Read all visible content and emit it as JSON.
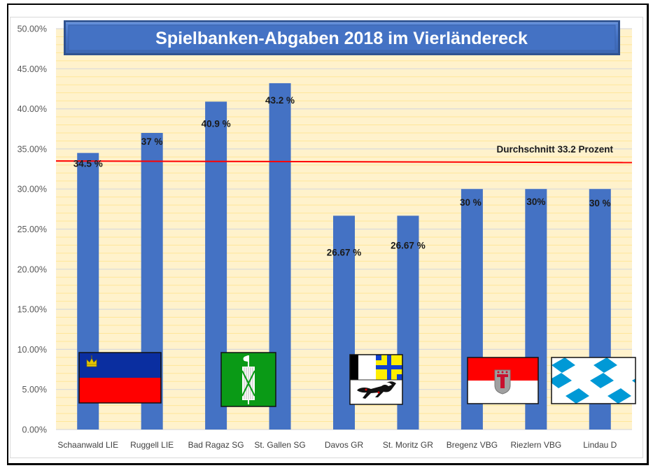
{
  "chart_data": {
    "type": "bar",
    "title": "Spielbanken-Abgaben 2018 im Vierländereck",
    "xlabel": "",
    "ylabel": "",
    "ylim": [
      0,
      50
    ],
    "y_tick_step": 5,
    "y_tick_labels": [
      "0.00%",
      "5.00%",
      "10.00%",
      "15.00%",
      "20.00%",
      "25.00%",
      "30.00%",
      "35.00%",
      "40.00%",
      "45.00%",
      "50.00%"
    ],
    "grid": true,
    "minor_grid_step": 1,
    "categories": [
      "Schaanwald LIE",
      "Ruggell LIE",
      "Bad Ragaz SG",
      "St. Gallen SG",
      "Davos GR",
      "St. Moritz GR",
      "Bregenz VBG",
      "Riezlern VBG",
      "Lindau D"
    ],
    "values": [
      34.5,
      37,
      40.9,
      43.2,
      26.67,
      26.67,
      30,
      30,
      30
    ],
    "data_labels": [
      "34.5 %",
      "37 %",
      "40.9 %",
      "43.2 %",
      "26.67 %",
      "26.67 %",
      "30 %",
      "30%",
      "30 %"
    ],
    "average_line": {
      "label": "Durchschnitt 33.2 Prozent",
      "value": 33.2,
      "start_value": 33.5,
      "end_value": 33.3,
      "color": "#ff0000"
    },
    "flags": [
      {
        "name": "Liechtenstein",
        "icon": "flag-liechtenstein",
        "covers": [
          "Schaanwald LIE",
          "Ruggell LIE"
        ]
      },
      {
        "name": "St. Gallen",
        "icon": "flag-st-gallen",
        "covers": [
          "Bad Ragaz SG",
          "St. Gallen SG"
        ]
      },
      {
        "name": "Graubünden",
        "icon": "flag-graubuenden",
        "covers": [
          "Davos GR",
          "St. Moritz GR"
        ]
      },
      {
        "name": "Vorarlberg",
        "icon": "flag-vorarlberg",
        "covers": [
          "Bregenz VBG"
        ]
      },
      {
        "name": "Bayern",
        "icon": "flag-bavaria",
        "covers": [
          "Riezlern VBG",
          "Lindau D"
        ]
      }
    ],
    "colors": {
      "bar": "#4472c4",
      "plot_background": "#fff2cc",
      "major_grid": "#d9d9d9",
      "minor_grid": "#ffe699",
      "title_box": "#4472c4"
    }
  }
}
